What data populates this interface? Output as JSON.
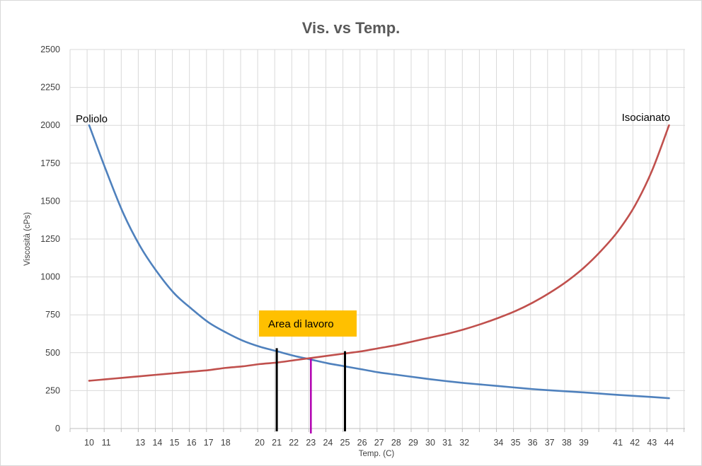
{
  "chart_data": {
    "type": "line",
    "title": "Vis. vs Temp.",
    "xlabel": "Temp. (C)",
    "ylabel": "Viscosità (cPs)",
    "ylim": [
      0,
      2500
    ],
    "yticks": [
      "0",
      "250",
      "500",
      "750",
      "1000",
      "1250",
      "1500",
      "1750",
      "2000",
      "2250",
      "2500"
    ],
    "categories": [
      "10",
      "11",
      "13",
      "14",
      "15",
      "16",
      "17",
      "18",
      "20",
      "21",
      "22",
      "23",
      "24",
      "25",
      "26",
      "27",
      "28",
      "29",
      "30",
      "31",
      "32",
      "34",
      "35",
      "36",
      "37",
      "38",
      "39",
      "41",
      "42",
      "43",
      "44"
    ],
    "grid": true,
    "series": [
      {
        "name": "Poliolo",
        "color": "#4f81bd",
        "x": [
          10,
          11,
          12,
          13,
          14,
          15,
          16,
          17,
          18,
          19,
          20,
          21,
          22,
          23,
          24,
          25,
          26,
          27,
          28,
          29,
          30,
          31,
          32,
          33,
          34,
          35,
          36,
          37,
          38,
          39,
          40,
          41,
          42,
          43,
          44
        ],
        "values": [
          2000,
          1700,
          1420,
          1200,
          1030,
          890,
          790,
          700,
          635,
          580,
          540,
          510,
          480,
          455,
          430,
          410,
          390,
          370,
          355,
          340,
          325,
          312,
          300,
          290,
          280,
          270,
          260,
          252,
          245,
          238,
          230,
          222,
          215,
          208,
          200
        ]
      },
      {
        "name": "Isocianato",
        "color": "#c0504d",
        "x": [
          10,
          11,
          12,
          13,
          14,
          15,
          16,
          17,
          18,
          19,
          20,
          21,
          22,
          23,
          24,
          25,
          26,
          27,
          28,
          29,
          30,
          31,
          32,
          33,
          34,
          35,
          36,
          37,
          38,
          39,
          40,
          41,
          42,
          43,
          44
        ],
        "values": [
          315,
          325,
          335,
          345,
          355,
          365,
          375,
          385,
          400,
          410,
          425,
          435,
          450,
          465,
          480,
          495,
          510,
          530,
          550,
          575,
          600,
          625,
          655,
          690,
          730,
          775,
          830,
          895,
          970,
          1060,
          1170,
          1300,
          1470,
          1700,
          2000
        ]
      }
    ],
    "annotations": {
      "area_label": "Area di lavoro",
      "area_label_bg": "#ffc000",
      "boundary_color": "#000000",
      "center_color": "#b000b0",
      "lines": [
        {
          "x": 21,
          "y": 530,
          "role": "boundary"
        },
        {
          "x": 23,
          "y": 460,
          "role": "center"
        },
        {
          "x": 25,
          "y": 510,
          "role": "boundary"
        }
      ]
    }
  }
}
